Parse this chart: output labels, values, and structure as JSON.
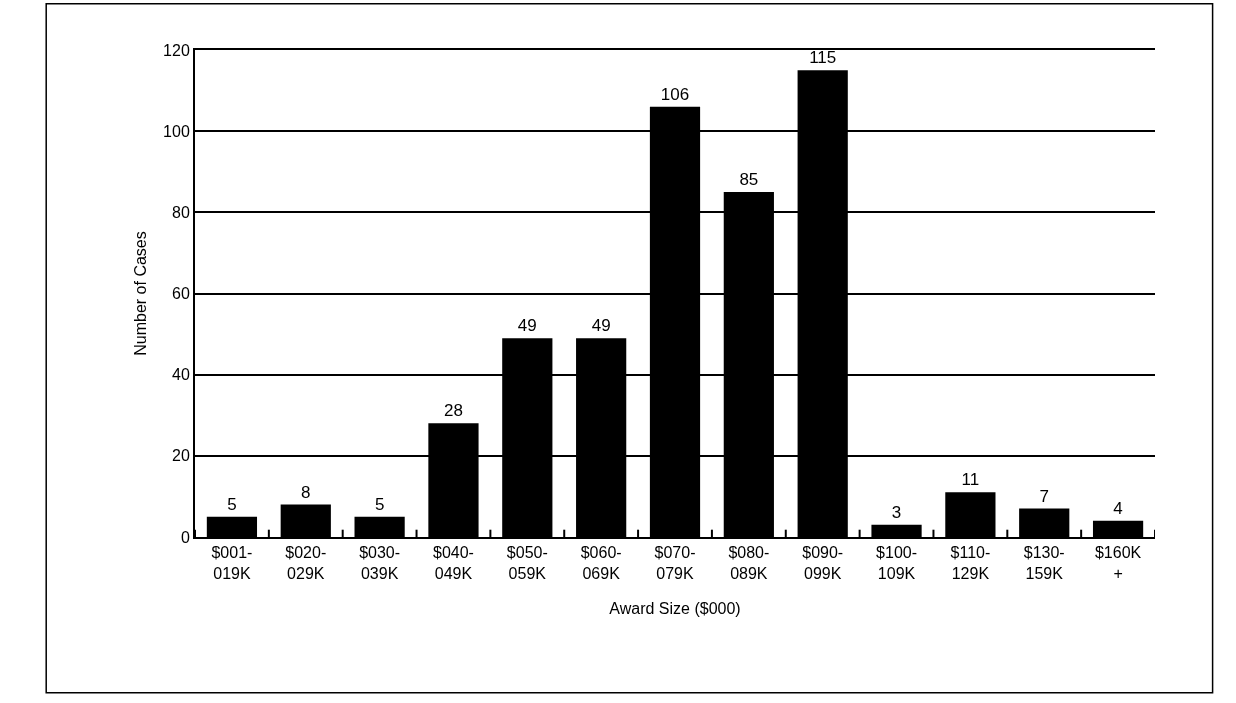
{
  "chart_data": {
    "type": "bar",
    "xlabel": "Award Size ($000)",
    "ylabel": "Number of Cases",
    "categories": [
      "$001-\n019K",
      "$020-\n029K",
      "$030-\n039K",
      "$040-\n049K",
      "$050-\n059K",
      "$060-\n069K",
      "$070-\n079K",
      "$080-\n089K",
      "$090-\n099K",
      "$100-\n109K",
      "$110-\n129K",
      "$130-\n159K",
      "$160K\n+"
    ],
    "values": [
      5,
      8,
      5,
      28,
      49,
      49,
      106,
      85,
      115,
      3,
      11,
      7,
      4
    ],
    "color": "#000000",
    "ylim": [
      0,
      120
    ],
    "yticks": [
      0,
      20,
      40,
      60,
      80,
      100,
      120
    ],
    "grid": "y",
    "data_labels": true
  }
}
